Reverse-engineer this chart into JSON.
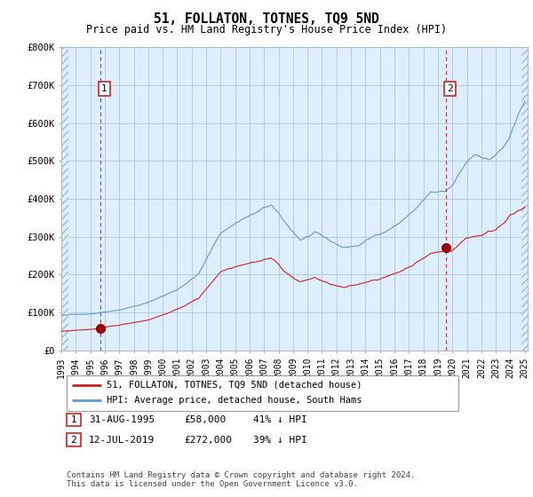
{
  "title": "51, FOLLATON, TOTNES, TQ9 5ND",
  "subtitle": "Price paid vs. HM Land Registry's House Price Index (HPI)",
  "ylabel_ticks": [
    "£0",
    "£100K",
    "£200K",
    "£300K",
    "£400K",
    "£500K",
    "£600K",
    "£700K",
    "£800K"
  ],
  "ytick_values": [
    0,
    100000,
    200000,
    300000,
    400000,
    500000,
    600000,
    700000,
    800000
  ],
  "ylim": [
    0,
    800000
  ],
  "xlim_start": 1993.0,
  "xlim_end": 2025.2,
  "xtick_years": [
    1993,
    1994,
    1995,
    1996,
    1997,
    1998,
    1999,
    2000,
    2001,
    2002,
    2003,
    2004,
    2005,
    2006,
    2007,
    2008,
    2009,
    2010,
    2011,
    2012,
    2013,
    2014,
    2015,
    2016,
    2017,
    2018,
    2019,
    2020,
    2021,
    2022,
    2023,
    2024,
    2025
  ],
  "sale1_year": 1995.67,
  "sale1_price": 58000,
  "sale2_year": 2019.54,
  "sale2_price": 272000,
  "sale1_label": "1",
  "sale2_label": "2",
  "sale1_date": "31-AUG-1995",
  "sale1_amount": "£58,000",
  "sale1_hpi": "41% ↓ HPI",
  "sale2_date": "12-JUL-2019",
  "sale2_amount": "£272,000",
  "sale2_hpi": "39% ↓ HPI",
  "red_line_color": "#cc2222",
  "blue_line_color": "#6699cc",
  "vline_color": "#cc2222",
  "marker_color": "#990000",
  "plot_bg_color": "#ddeeff",
  "legend_label1": "51, FOLLATON, TOTNES, TQ9 5ND (detached house)",
  "legend_label2": "HPI: Average price, detached house, South Hams",
  "footer_text": "Contains HM Land Registry data © Crown copyright and database right 2024.\nThis data is licensed under the Open Government Licence v3.0."
}
